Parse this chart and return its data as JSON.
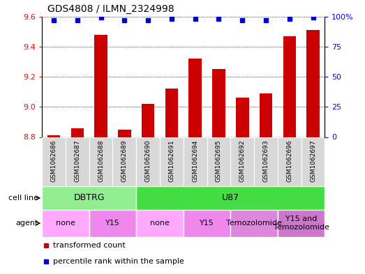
{
  "title": "GDS4808 / ILMN_2324998",
  "samples": [
    "GSM1062686",
    "GSM1062687",
    "GSM1062688",
    "GSM1062689",
    "GSM1062690",
    "GSM1062691",
    "GSM1062694",
    "GSM1062695",
    "GSM1062692",
    "GSM1062693",
    "GSM1062696",
    "GSM1062697"
  ],
  "bar_values": [
    8.81,
    8.86,
    9.48,
    8.85,
    9.02,
    9.12,
    9.32,
    9.25,
    9.06,
    9.09,
    9.47,
    9.51
  ],
  "dot_values": [
    97,
    97,
    99,
    97,
    97,
    98,
    98,
    98,
    97,
    97,
    98,
    99
  ],
  "ylim_left": [
    8.8,
    9.6
  ],
  "ylim_right": [
    0,
    100
  ],
  "yticks_left": [
    8.8,
    9.0,
    9.2,
    9.4,
    9.6
  ],
  "yticks_right": [
    0,
    25,
    50,
    75,
    100
  ],
  "ytick_right_labels": [
    "0",
    "25",
    "50",
    "75",
    "100%"
  ],
  "bar_color": "#cc0000",
  "dot_color": "#0000cc",
  "bar_bottom": 8.8,
  "cell_line_data": [
    {
      "label": "DBTRG",
      "start": 0,
      "end": 3,
      "color": "#90ee90"
    },
    {
      "label": "U87",
      "start": 4,
      "end": 11,
      "color": "#44dd44"
    }
  ],
  "agent_data": [
    {
      "label": "none",
      "start": 0,
      "end": 1,
      "color": "#ffaaff"
    },
    {
      "label": "Y15",
      "start": 2,
      "end": 3,
      "color": "#ee88ee"
    },
    {
      "label": "none",
      "start": 4,
      "end": 5,
      "color": "#ffaaff"
    },
    {
      "label": "Y15",
      "start": 6,
      "end": 7,
      "color": "#ee88ee"
    },
    {
      "label": "Temozolomide",
      "start": 8,
      "end": 9,
      "color": "#dd88dd"
    },
    {
      "label": "Y15 and\nTemozolomide",
      "start": 10,
      "end": 11,
      "color": "#cc77cc"
    }
  ],
  "cell_line_row_label": "cell line",
  "agent_row_label": "agent",
  "legend_items": [
    {
      "label": "transformed count",
      "color": "#cc0000",
      "marker": "s"
    },
    {
      "label": "percentile rank within the sample",
      "color": "#0000cc",
      "marker": "s"
    }
  ],
  "sample_bg_color": "#d8d8d8",
  "chart_bg_color": "#ffffff",
  "border_color": "#000000"
}
